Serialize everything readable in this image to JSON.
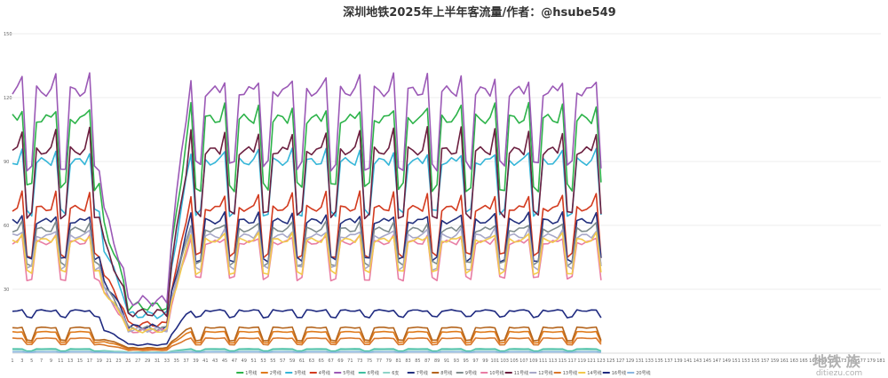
{
  "chart_data": {
    "type": "line",
    "title": "深圳地铁2025年上半年客流量/作者：@hsube549",
    "xlabel": "",
    "ylabel": "",
    "ylim": [
      0,
      150
    ],
    "y_ticks": [
      30,
      60,
      90,
      120,
      150
    ],
    "x_range": [
      1,
      181
    ],
    "x_tick_step": 2,
    "grid": true,
    "legend_position": "bottom",
    "series": [
      {
        "name": "1号线",
        "color": "#2db34a",
        "base": 110,
        "dip": 32,
        "peak_boost": 1.05
      },
      {
        "name": "2号线",
        "color": "#e07b1c",
        "base": 10,
        "dip": 5,
        "peak_boost": 1.0
      },
      {
        "name": "3号线",
        "color": "#35b6d8",
        "base": 90,
        "dip": 24,
        "peak_boost": 1.05
      },
      {
        "name": "4号线",
        "color": "#d33b1f",
        "base": 68,
        "dip": 22,
        "peak_boost": 1.1
      },
      {
        "name": "5号线",
        "color": "#9b59b6",
        "base": 123,
        "dip": 35,
        "peak_boost": 1.05
      },
      {
        "name": "6号线",
        "color": "#3fbfa0",
        "base": 2,
        "dip": 1,
        "peak_boost": 1.0
      },
      {
        "name": "6支",
        "color": "#8fd3c8",
        "base": 1.5,
        "dip": 1,
        "peak_boost": 1.0
      },
      {
        "name": "7号线",
        "color": "#23307e",
        "base": 62,
        "dip": 18,
        "peak_boost": 1.05
      },
      {
        "name": "8号线",
        "color": "#b5651d",
        "base": 12,
        "dip": 6,
        "peak_boost": 1.0
      },
      {
        "name": "9号线",
        "color": "#7f8c8d",
        "base": 58,
        "dip": 16,
        "peak_boost": 1.05
      },
      {
        "name": "10号线",
        "color": "#e87da4",
        "base": 52,
        "dip": 17,
        "peak_boost": 1.05
      },
      {
        "name": "11号线",
        "color": "#6b1f3f",
        "base": 95,
        "dip": 30,
        "peak_boost": 1.1
      },
      {
        "name": "12号线",
        "color": "#a8a8c8",
        "base": 55,
        "dip": 15,
        "peak_boost": 1.05
      },
      {
        "name": "13号线",
        "color": "#d9772b",
        "base": 7,
        "dip": 3,
        "peak_boost": 1.0
      },
      {
        "name": "14号线",
        "color": "#f2c94c",
        "base": 53,
        "dip": 15,
        "peak_boost": 1.05
      },
      {
        "name": "16号线",
        "color": "#1f2a80",
        "base": 20,
        "dip": 3,
        "peak_boost": 1.0
      },
      {
        "name": "20号线",
        "color": "#8ab6e0",
        "base": 0.6,
        "dip": 0.2,
        "peak_boost": 1.0
      }
    ]
  },
  "watermark": {
    "line1": "地铁 族",
    "line2": "ditiezu.com"
  }
}
